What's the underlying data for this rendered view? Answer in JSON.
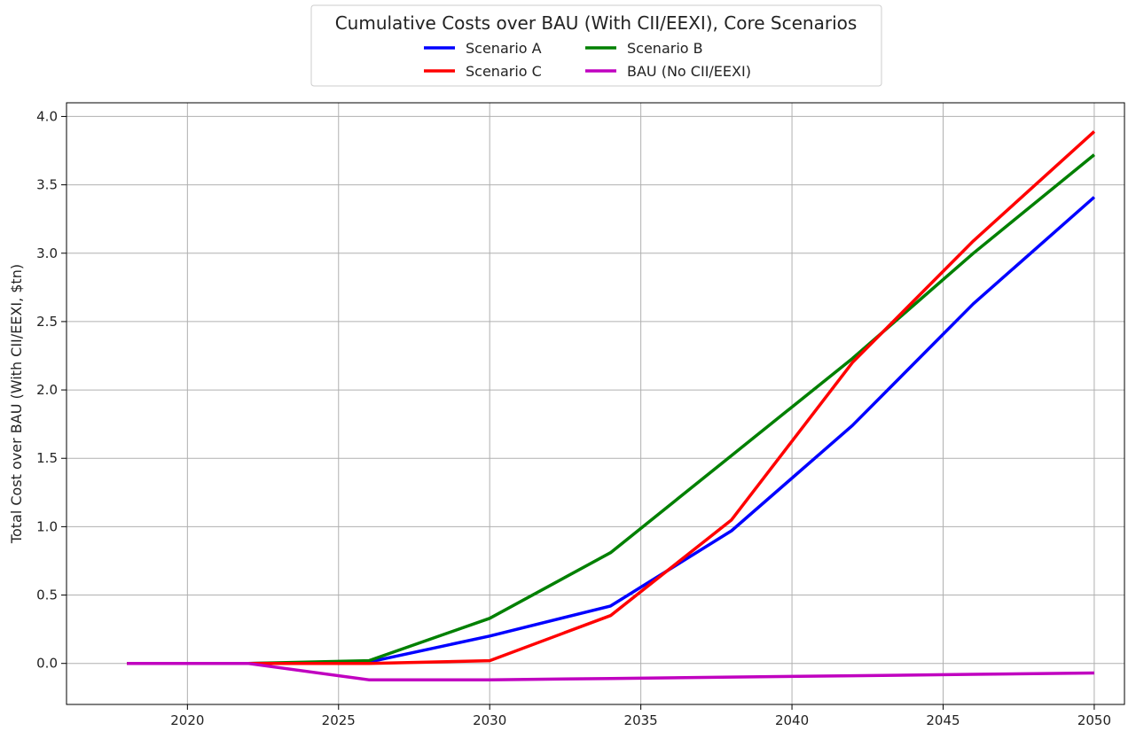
{
  "chart_data": {
    "type": "line",
    "title": "Cumulative Costs over BAU (With CII/EEXI), Core Scenarios",
    "xlabel": "",
    "ylabel": "Total Cost over BAU (With CII/EEXI, $tn)",
    "xlim": [
      2016,
      2051
    ],
    "ylim": [
      -0.3,
      4.1
    ],
    "xticks": [
      2020,
      2025,
      2030,
      2035,
      2040,
      2045,
      2050
    ],
    "yticks": [
      0.0,
      0.5,
      1.0,
      1.5,
      2.0,
      2.5,
      3.0,
      3.5,
      4.0
    ],
    "ytick_labels": [
      "0.0",
      "0.5",
      "1.0",
      "1.5",
      "2.0",
      "2.5",
      "3.0",
      "3.5",
      "4.0"
    ],
    "grid": true,
    "legend_position": "top-center",
    "series": [
      {
        "name": "Scenario A",
        "color": "#0000ff",
        "x": [
          2018,
          2022,
          2026,
          2030,
          2034,
          2038,
          2042,
          2046,
          2050
        ],
        "y": [
          0.0,
          0.0,
          0.01,
          0.2,
          0.42,
          0.97,
          1.74,
          2.63,
          3.41
        ]
      },
      {
        "name": "Scenario B",
        "color": "#008000",
        "x": [
          2018,
          2022,
          2026,
          2030,
          2034,
          2038,
          2042,
          2046,
          2050
        ],
        "y": [
          0.0,
          0.0,
          0.02,
          0.33,
          0.81,
          1.52,
          2.23,
          3.0,
          3.72
        ]
      },
      {
        "name": "Scenario C",
        "color": "#ff0000",
        "x": [
          2018,
          2022,
          2026,
          2030,
          2034,
          2038,
          2042,
          2046,
          2050
        ],
        "y": [
          0.0,
          0.0,
          0.0,
          0.02,
          0.35,
          1.05,
          2.2,
          3.09,
          3.89
        ]
      },
      {
        "name": "BAU (No CII/EEXI)",
        "color": "#c000c0",
        "x": [
          2018,
          2022,
          2026,
          2030,
          2034,
          2038,
          2042,
          2046,
          2050
        ],
        "y": [
          0.0,
          0.0,
          -0.12,
          -0.12,
          -0.11,
          -0.1,
          -0.09,
          -0.08,
          -0.07
        ]
      }
    ],
    "legend_order": [
      0,
      2,
      1,
      3
    ]
  }
}
